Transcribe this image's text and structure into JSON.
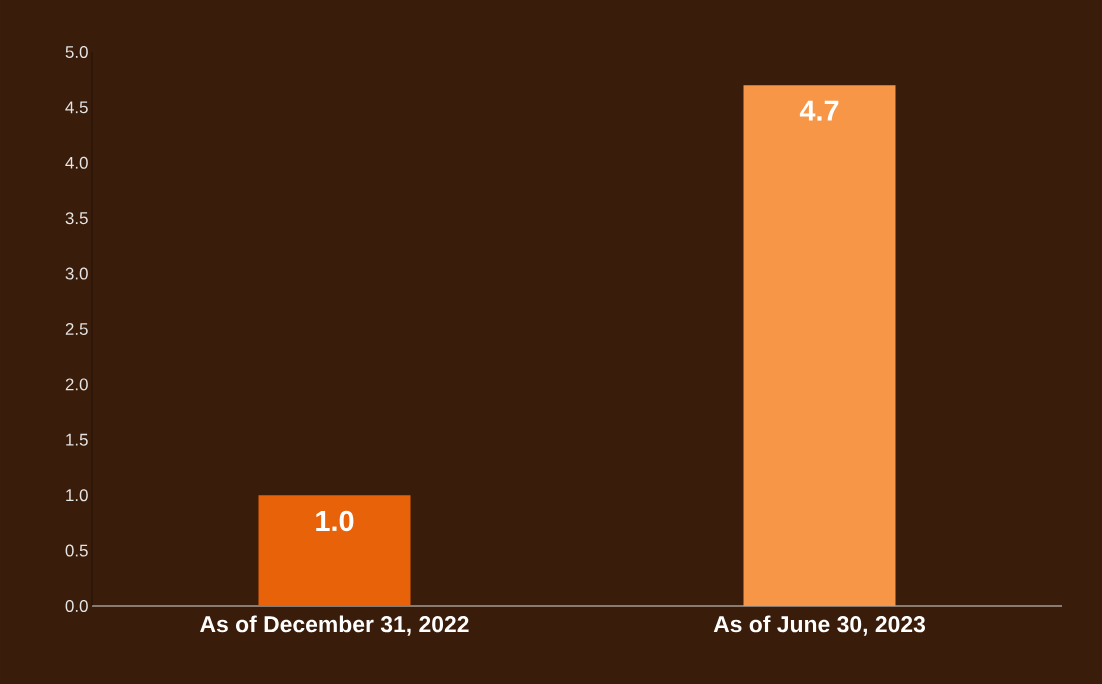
{
  "chart_data": {
    "type": "bar",
    "categories": [
      "As of December 31, 2022",
      "As of June 30, 2023"
    ],
    "values": [
      1.0,
      4.7
    ],
    "colors": [
      "#e8620a",
      "#f79646"
    ],
    "value_labels": [
      "1.0",
      "4.7"
    ],
    "ylim": [
      0,
      5
    ],
    "yticks": [
      {
        "value": 0,
        "label": "0.0"
      },
      0.5,
      {
        "value": 1,
        "label": "1.0"
      },
      1.5,
      {
        "value": 2,
        "label": "2.0"
      },
      2.5,
      {
        "value": 3,
        "label": "3.0"
      },
      3.5,
      {
        "value": 4,
        "label": "4.0"
      },
      4.5,
      {
        "value": 5,
        "label": "5.0"
      }
    ]
  }
}
